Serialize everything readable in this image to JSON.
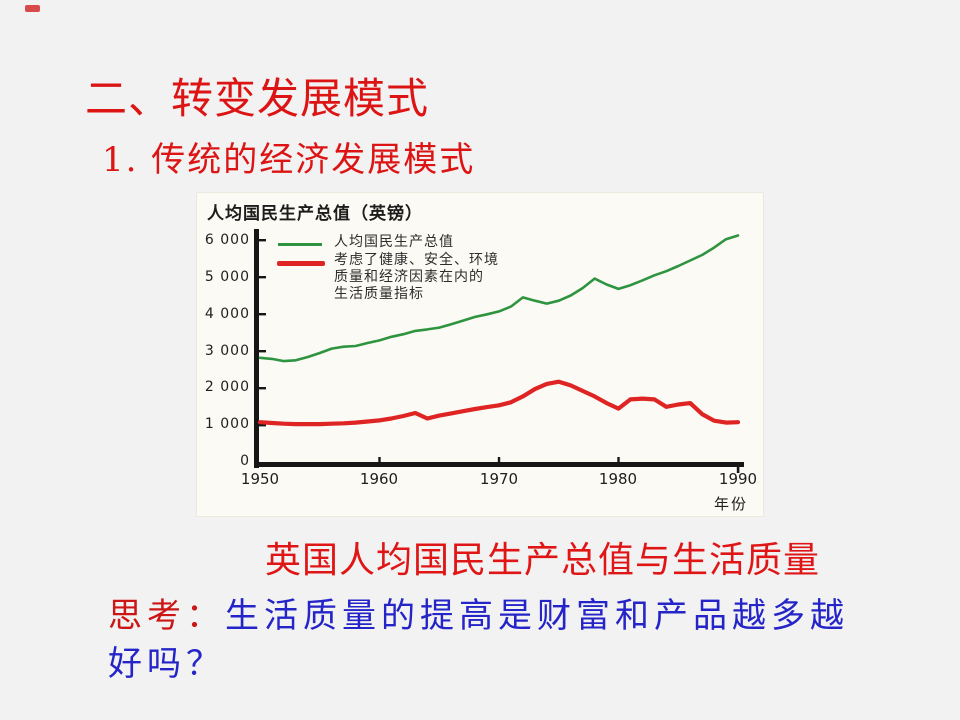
{
  "slide": {
    "background_color": "#f2f2f2",
    "accent_red": "#dd1414",
    "text_blue": "#2424c8",
    "marker_color": "#d94a4a"
  },
  "title": "二、转变发展模式",
  "subtitle": "1. 传统的经济发展模式",
  "caption": "英国人均国民生产总值与生活质量",
  "think": {
    "prefix": "思考：",
    "question_line1": "生活质量的提高是财富和产品越多越",
    "question_line2": "好吗？"
  },
  "chart_data": {
    "type": "line",
    "title": "人均国民生产总值（英镑）",
    "xlabel": "年份",
    "ylabel": "",
    "xlim": [
      1950,
      1990
    ],
    "ylim": [
      0,
      6000
    ],
    "grid": false,
    "legend_position": "top-left-inside",
    "x_ticks": [
      "1950",
      "1960",
      "1970",
      "1980",
      "1990"
    ],
    "y_ticks": [
      "6 000",
      "5 000",
      "4 000",
      "3 000",
      "2 000",
      "1 000",
      "0"
    ],
    "y_tick_values": [
      6000,
      5000,
      4000,
      3000,
      2000,
      1000,
      0
    ],
    "x": [
      1950,
      1951,
      1952,
      1953,
      1954,
      1955,
      1956,
      1957,
      1958,
      1959,
      1960,
      1961,
      1962,
      1963,
      1964,
      1965,
      1966,
      1967,
      1968,
      1969,
      1970,
      1971,
      1972,
      1973,
      1974,
      1975,
      1976,
      1977,
      1978,
      1979,
      1980,
      1981,
      1982,
      1983,
      1984,
      1985,
      1986,
      1987,
      1988,
      1989,
      1990
    ],
    "series": [
      {
        "name": "人均国民生产总值",
        "color": "#2e9440",
        "width": 2.6,
        "values": [
          2830,
          2800,
          2740,
          2760,
          2850,
          2960,
          3080,
          3130,
          3150,
          3230,
          3300,
          3400,
          3470,
          3560,
          3600,
          3650,
          3740,
          3840,
          3940,
          4010,
          4090,
          4220,
          4470,
          4380,
          4300,
          4380,
          4520,
          4720,
          4980,
          4820,
          4700,
          4800,
          4930,
          5070,
          5180,
          5320,
          5470,
          5620,
          5820,
          6050,
          6150
        ]
      },
      {
        "name": "考虑了健康、安全、环境质量和经济因素在内的生活质量指标",
        "legend_lines": [
          "考虑了健康、安全、环境",
          "质量和经济因素在内的",
          "生活质量指标"
        ],
        "color": "#df2424",
        "width": 4.2,
        "values": [
          1080,
          1060,
          1040,
          1030,
          1030,
          1030,
          1040,
          1050,
          1070,
          1100,
          1130,
          1180,
          1250,
          1330,
          1180,
          1260,
          1320,
          1380,
          1440,
          1490,
          1540,
          1620,
          1780,
          1980,
          2120,
          2180,
          2080,
          1930,
          1780,
          1600,
          1450,
          1700,
          1720,
          1700,
          1500,
          1560,
          1600,
          1300,
          1120,
          1070,
          1080
        ]
      }
    ]
  }
}
